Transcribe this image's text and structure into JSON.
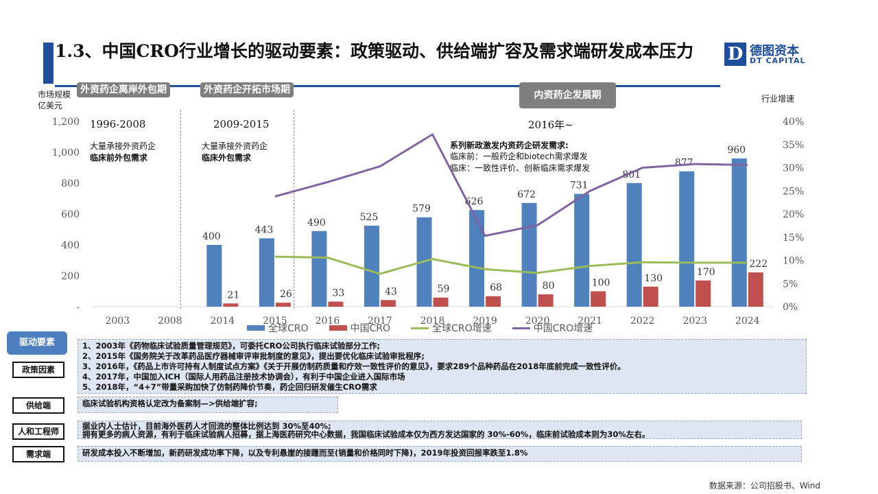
{
  "header": {
    "title": "1.3、中国CRO行业增长的驱动要素：政策驱动、供给端扩容及需求端研发成本压力",
    "logo_mark": "D",
    "logo_cn": "德图资本",
    "logo_en": "DT CAPITAL"
  },
  "axes": {
    "left_title_1": "市场规模",
    "left_title_2": "亿美元",
    "right_title": "行业增速"
  },
  "phases": [
    {
      "label": "外资药企离岸外包期",
      "years": "1996-2008",
      "note_1": "大量承接外资药企",
      "note_2": "临床前外包需求"
    },
    {
      "label": "外资药企开拓市场期",
      "years": "2009-2015",
      "note_1": "大量承接外资药企",
      "note_2": "临床外包需求"
    },
    {
      "label": "内资药企发展期",
      "years": "2016年~",
      "note_1": "系列新政激发内资药企研发需求:",
      "note_2": "临床前：一般药企和biotech需求爆发",
      "note_3": "临床：一致性评价、创新临床需求爆发"
    }
  ],
  "chart_data": {
    "type": "bar",
    "categories": [
      "2003",
      "2008",
      "2014",
      "2015",
      "2016",
      "2017",
      "2018",
      "2019",
      "2020",
      "2021",
      "2022",
      "2023",
      "2024"
    ],
    "y_ticks_left": [
      "-",
      "200",
      "400",
      "600",
      "800",
      "1,000",
      "1,200"
    ],
    "y_ticks_right": [
      "0%",
      "5%",
      "10%",
      "15%",
      "20%",
      "25%",
      "30%",
      "35%",
      "40%"
    ],
    "ylim": [
      0,
      1200
    ],
    "ylim_right": [
      0,
      40
    ],
    "series": [
      {
        "name": "全球CRO",
        "kind": "bar",
        "color": "#4f81bd",
        "values": [
          null,
          null,
          400,
          443,
          490,
          525,
          579,
          626,
          672,
          731,
          801,
          877,
          960
        ]
      },
      {
        "name": "中国CRO",
        "kind": "bar",
        "color": "#c0504d",
        "values": [
          null,
          null,
          21,
          26,
          33,
          43,
          59,
          68,
          80,
          100,
          130,
          170,
          222
        ]
      },
      {
        "name": "全球CRO增速",
        "kind": "line",
        "axis": "right",
        "color": "#9bbb59",
        "values": [
          null,
          null,
          null,
          10.8,
          10.6,
          7.1,
          10.3,
          8.1,
          7.3,
          8.8,
          9.6,
          9.5,
          9.5
        ]
      },
      {
        "name": "中国CRO增速",
        "kind": "line",
        "axis": "right",
        "color": "#8064a2",
        "values": [
          null,
          null,
          null,
          23.8,
          26.9,
          30.3,
          37.2,
          15.3,
          17.6,
          25.0,
          30.0,
          30.8,
          30.6
        ]
      }
    ],
    "legend_position": "bottom"
  },
  "drivers": {
    "head": "驱动要素",
    "rows": [
      {
        "label": "政策因素",
        "lines": [
          "1、2003年《药物临床试验质量管理规范》，可委托CRO公司执行临床试验部分工作;",
          "2、2015年《国务院关于改革药品医疗器械审评审批制度的意见》，提出要优化临床试验审批程序;",
          "3、2016年，《药品上市许可持有人制度试点方案》《关于开展仿制药质量和疗效一致性评价的意见》，要求289个品种药品在2018年底前完成一致性评价。",
          "4、2017年，中国加入ICH（国际人用药品注册技术协调会），有利于中国企业进入国际市场",
          "5、2018年，“4+7”带量采购加快了仿制药降价节奏，药企回归研发催生CRO需求"
        ]
      },
      {
        "label": "供给端",
        "lines": [
          "临床试验机构资格认定改为备案制—>供给端扩容;"
        ]
      },
      {
        "label": "人和工程师",
        "lines": [
          "据业内人士估计，目前海外医药人才回流的整体比例达到 30%至40%;",
          "拥有更多的病人资源，有利于临床试验病人招募，据上海医药研究中心数据，我国临床试验成本仅为西方发达国家的 30%-60%，临床前试验成本则为30%左右。"
        ]
      },
      {
        "label": "需求端",
        "lines": [
          "研发成本投入不断增加，新药研发成功率下降，以及专利悬崖的接踵而至(销量和价格同时下降)，2019年投资回报率跌至1.8%"
        ]
      }
    ]
  },
  "source": "数据来源：公司招股书、Wind"
}
